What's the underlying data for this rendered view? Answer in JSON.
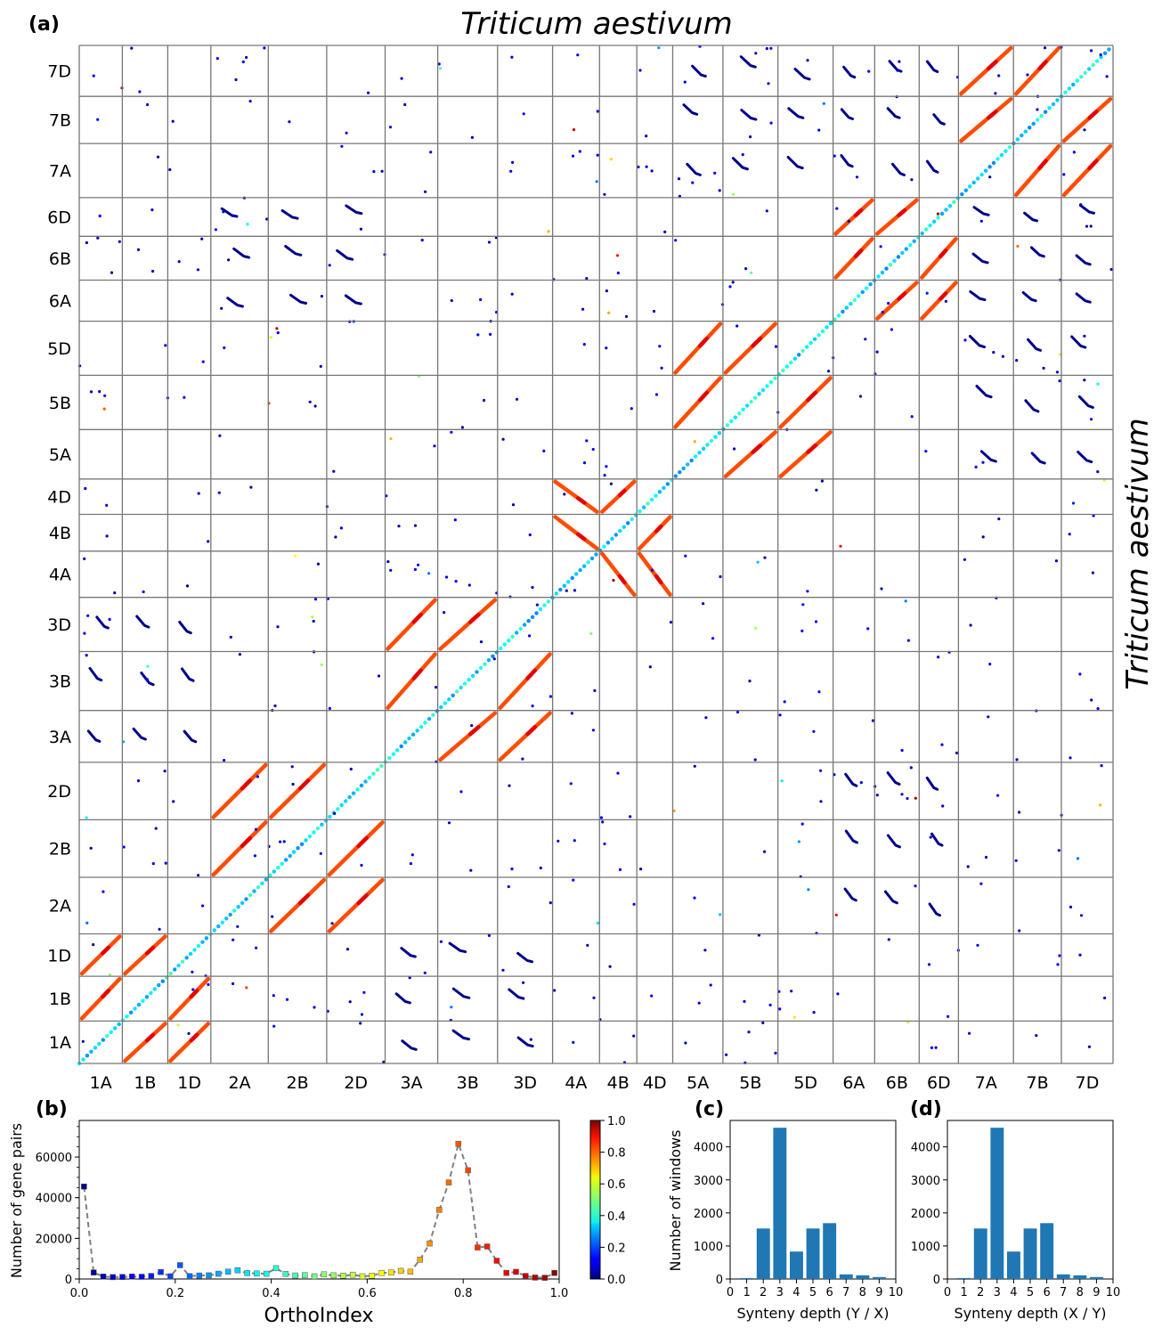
{
  "panel_labels": [
    "(a)",
    "(b)",
    "(c)",
    "(d)"
  ],
  "chart_data": [
    {
      "type": "scatter",
      "panel": "(a)",
      "title": "Triticum aestivum",
      "xlabel": "",
      "ylabel": "Triticum aestivum",
      "chromosomes": [
        "1A",
        "1B",
        "1D",
        "2A",
        "2B",
        "2D",
        "3A",
        "3B",
        "3D",
        "4A",
        "4B",
        "4D",
        "5A",
        "5B",
        "5D",
        "6A",
        "6B",
        "6D",
        "7A",
        "7B",
        "7D"
      ],
      "relative_lengths": [
        0.9,
        0.95,
        0.9,
        1.2,
        1.22,
        1.22,
        1.1,
        1.25,
        1.15,
        0.98,
        0.78,
        0.75,
        1.05,
        1.15,
        1.15,
        0.87,
        0.93,
        0.82,
        1.15,
        1.0,
        1.08
      ],
      "color_scale": "OrthoIndex 0-1 (jet)",
      "homeologous_blocks": [
        {
          "x": "1A",
          "y": "1B",
          "orthoindex": 0.8
        },
        {
          "x": "1A",
          "y": "1D",
          "orthoindex": 0.8
        },
        {
          "x": "1B",
          "y": "1D",
          "orthoindex": 0.8
        },
        {
          "x": "2A",
          "y": "2B",
          "orthoindex": 0.8
        },
        {
          "x": "2A",
          "y": "2D",
          "orthoindex": 0.8
        },
        {
          "x": "2B",
          "y": "2D",
          "orthoindex": 0.8
        },
        {
          "x": "3A",
          "y": "3B",
          "orthoindex": 0.8
        },
        {
          "x": "3A",
          "y": "3D",
          "orthoindex": 0.8
        },
        {
          "x": "3B",
          "y": "3D",
          "orthoindex": 0.8
        },
        {
          "x": "5A",
          "y": "5B",
          "orthoindex": 0.8
        },
        {
          "x": "5A",
          "y": "5D",
          "orthoindex": 0.8
        },
        {
          "x": "5B",
          "y": "5D",
          "orthoindex": 0.8
        },
        {
          "x": "6A",
          "y": "6B",
          "orthoindex": 0.8
        },
        {
          "x": "6A",
          "y": "6D",
          "orthoindex": 0.8
        },
        {
          "x": "6B",
          "y": "6D",
          "orthoindex": 0.8
        },
        {
          "x": "7A",
          "y": "7B",
          "orthoindex": 0.8
        },
        {
          "x": "7A",
          "y": "7D",
          "orthoindex": 0.8
        },
        {
          "x": "7B",
          "y": "7D",
          "orthoindex": 0.8
        },
        {
          "x": "4A",
          "y": "4B",
          "orthoindex": 0.8,
          "orientation": "inverted"
        },
        {
          "x": "4A",
          "y": "4D",
          "orthoindex": 0.8,
          "orientation": "inverted"
        },
        {
          "x": "4B",
          "y": "4D",
          "orthoindex": 0.8
        }
      ],
      "paralog_blocks": [
        {
          "x": "1A",
          "y": "3A"
        },
        {
          "x": "1A",
          "y": "3B"
        },
        {
          "x": "1A",
          "y": "3D"
        },
        {
          "x": "1B",
          "y": "3A"
        },
        {
          "x": "1B",
          "y": "3B"
        },
        {
          "x": "1B",
          "y": "3D"
        },
        {
          "x": "1D",
          "y": "3A"
        },
        {
          "x": "1D",
          "y": "3B"
        },
        {
          "x": "1D",
          "y": "3D"
        },
        {
          "x": "2A",
          "y": "6A"
        },
        {
          "x": "2A",
          "y": "6B"
        },
        {
          "x": "2A",
          "y": "6D"
        },
        {
          "x": "2B",
          "y": "6A"
        },
        {
          "x": "2B",
          "y": "6B"
        },
        {
          "x": "2B",
          "y": "6D"
        },
        {
          "x": "2D",
          "y": "6A"
        },
        {
          "x": "2D",
          "y": "6B"
        },
        {
          "x": "2D",
          "y": "6D"
        },
        {
          "x": "5A",
          "y": "7A"
        },
        {
          "x": "5A",
          "y": "7B"
        },
        {
          "x": "5A",
          "y": "7D"
        },
        {
          "x": "5B",
          "y": "7A"
        },
        {
          "x": "5B",
          "y": "7B"
        },
        {
          "x": "5B",
          "y": "7D"
        },
        {
          "x": "5D",
          "y": "7A"
        },
        {
          "x": "5D",
          "y": "7B"
        },
        {
          "x": "5D",
          "y": "7D"
        },
        {
          "x": "6A",
          "y": "7A"
        },
        {
          "x": "6A",
          "y": "7B"
        },
        {
          "x": "6A",
          "y": "7D"
        },
        {
          "x": "6B",
          "y": "7A"
        },
        {
          "x": "6B",
          "y": "7B"
        },
        {
          "x": "6B",
          "y": "7D"
        },
        {
          "x": "6D",
          "y": "7A"
        },
        {
          "x": "6D",
          "y": "7B"
        },
        {
          "x": "6D",
          "y": "7D"
        }
      ]
    },
    {
      "type": "line",
      "panel": "(b)",
      "title": "",
      "xlabel": "OrthoIndex",
      "ylabel": "Number of gene pairs",
      "xlim": [
        0.0,
        1.0
      ],
      "ylim": [
        0,
        78000
      ],
      "xticks": [
        "0.0",
        "0.2",
        "0.4",
        "0.6",
        "0.8",
        "1.0"
      ],
      "yticks": [
        "0",
        "20000",
        "40000",
        "60000"
      ],
      "colorbar_ticks": [
        "0.0",
        "0.2",
        "0.4",
        "0.6",
        "0.8",
        "1.0"
      ],
      "x": [
        0.01,
        0.03,
        0.05,
        0.07,
        0.09,
        0.11,
        0.13,
        0.15,
        0.17,
        0.19,
        0.21,
        0.23,
        0.25,
        0.27,
        0.29,
        0.31,
        0.33,
        0.35,
        0.37,
        0.39,
        0.41,
        0.43,
        0.45,
        0.47,
        0.49,
        0.51,
        0.53,
        0.55,
        0.57,
        0.59,
        0.61,
        0.63,
        0.65,
        0.67,
        0.69,
        0.71,
        0.73,
        0.75,
        0.77,
        0.79,
        0.81,
        0.83,
        0.85,
        0.87,
        0.89,
        0.91,
        0.93,
        0.95,
        0.97,
        0.99
      ],
      "y": [
        45500,
        3200,
        1200,
        900,
        1000,
        1200,
        1100,
        1500,
        3400,
        1300,
        6800,
        1400,
        1700,
        1800,
        2600,
        3600,
        4300,
        2900,
        2700,
        2600,
        5300,
        2500,
        1700,
        1900,
        1300,
        2300,
        1800,
        1600,
        2100,
        1300,
        1600,
        3000,
        3200,
        4000,
        3600,
        9500,
        17500,
        34000,
        47500,
        66500,
        53500,
        15500,
        16000,
        9000,
        3000,
        3500,
        1500,
        700,
        600,
        3000
      ]
    },
    {
      "type": "bar",
      "panel": "(c)",
      "xlabel": "Synteny depth (Y / X)",
      "ylabel": "Number of windows",
      "categories": [
        "0",
        "1",
        "2",
        "3",
        "4",
        "5",
        "6",
        "7",
        "8",
        "9",
        "10"
      ],
      "values": [
        0,
        30,
        1530,
        4580,
        830,
        1530,
        1690,
        140,
        110,
        60,
        0
      ],
      "ylim": [
        0,
        4800
      ],
      "yticks": [
        "0",
        "1000",
        "2000",
        "3000",
        "4000"
      ]
    },
    {
      "type": "bar",
      "panel": "(d)",
      "xlabel": "Synteny depth (X / Y)",
      "ylabel": "",
      "categories": [
        "0",
        "1",
        "2",
        "3",
        "4",
        "5",
        "6",
        "7",
        "8",
        "9",
        "10"
      ],
      "values": [
        0,
        30,
        1530,
        4580,
        830,
        1530,
        1690,
        140,
        110,
        60,
        0
      ],
      "ylim": [
        0,
        4800
      ],
      "yticks": [
        "0",
        "1000",
        "2000",
        "3000",
        "4000"
      ]
    }
  ]
}
